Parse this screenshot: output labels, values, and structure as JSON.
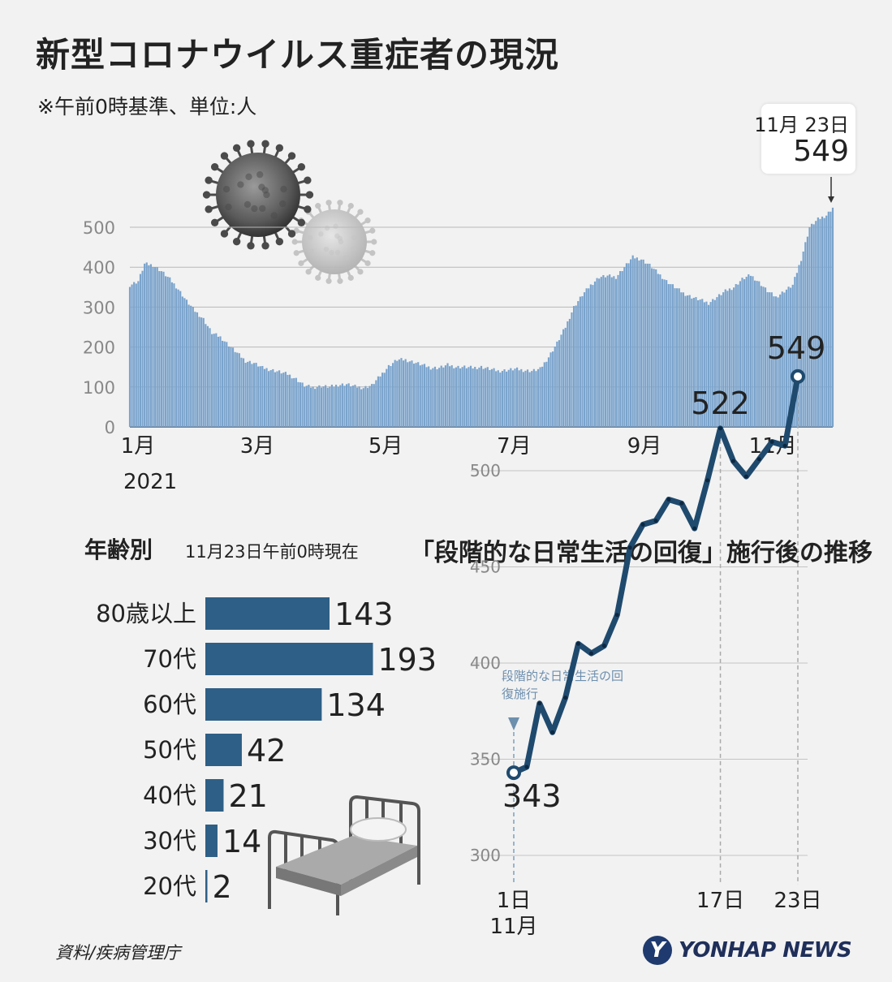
{
  "header": {
    "title": "新型コロナウイルス重症者の現況",
    "subtitle": "※午前0時基準、単位:人"
  },
  "callout": {
    "date": "11月 23日",
    "value": "549"
  },
  "chart_data": [
    {
      "type": "bar",
      "title": "",
      "ylim": [
        0,
        560
      ],
      "yticks": [
        0,
        100,
        200,
        300,
        400,
        500
      ],
      "xtick_labels": [
        "1月",
        "3月",
        "5月",
        "7月",
        "9月",
        "11月"
      ],
      "year_label": "2021",
      "grid": true,
      "color": "#7aa3cc",
      "anchors": [
        [
          "01-01",
          355
        ],
        [
          "01-05",
          365
        ],
        [
          "01-08",
          408
        ],
        [
          "01-12",
          405
        ],
        [
          "01-16",
          390
        ],
        [
          "01-20",
          370
        ],
        [
          "01-24",
          345
        ],
        [
          "01-28",
          315
        ],
        [
          "02-01",
          290
        ],
        [
          "02-05",
          270
        ],
        [
          "02-09",
          235
        ],
        [
          "02-13",
          225
        ],
        [
          "02-17",
          205
        ],
        [
          "02-21",
          185
        ],
        [
          "02-25",
          165
        ],
        [
          "03-01",
          160
        ],
        [
          "03-05",
          148
        ],
        [
          "03-09",
          143
        ],
        [
          "03-13",
          138
        ],
        [
          "03-17",
          132
        ],
        [
          "03-21",
          120
        ],
        [
          "03-25",
          103
        ],
        [
          "03-29",
          99
        ],
        [
          "04-02",
          102
        ],
        [
          "04-06",
          100
        ],
        [
          "04-10",
          105
        ],
        [
          "04-14",
          107
        ],
        [
          "04-18",
          101
        ],
        [
          "04-22",
          98
        ],
        [
          "04-26",
          104
        ],
        [
          "04-30",
          128
        ],
        [
          "05-04",
          152
        ],
        [
          "05-08",
          168
        ],
        [
          "05-12",
          168
        ],
        [
          "05-16",
          162
        ],
        [
          "05-20",
          155
        ],
        [
          "05-24",
          148
        ],
        [
          "05-28",
          148
        ],
        [
          "06-01",
          155
        ],
        [
          "06-05",
          150
        ],
        [
          "06-09",
          150
        ],
        [
          "06-13",
          148
        ],
        [
          "06-17",
          150
        ],
        [
          "06-21",
          145
        ],
        [
          "06-25",
          140
        ],
        [
          "06-29",
          142
        ],
        [
          "07-03",
          145
        ],
        [
          "07-07",
          142
        ],
        [
          "07-11",
          140
        ],
        [
          "07-15",
          145
        ],
        [
          "07-19",
          175
        ],
        [
          "07-23",
          210
        ],
        [
          "07-27",
          250
        ],
        [
          "07-31",
          300
        ],
        [
          "08-04",
          330
        ],
        [
          "08-08",
          355
        ],
        [
          "08-12",
          375
        ],
        [
          "08-16",
          378
        ],
        [
          "08-20",
          375
        ],
        [
          "08-24",
          400
        ],
        [
          "08-28",
          425
        ],
        [
          "09-01",
          420
        ],
        [
          "09-05",
          405
        ],
        [
          "09-09",
          385
        ],
        [
          "09-13",
          365
        ],
        [
          "09-17",
          350
        ],
        [
          "09-21",
          335
        ],
        [
          "09-25",
          325
        ],
        [
          "09-29",
          318
        ],
        [
          "10-03",
          310
        ],
        [
          "10-07",
          325
        ],
        [
          "10-11",
          340
        ],
        [
          "10-15",
          350
        ],
        [
          "10-19",
          370
        ],
        [
          "10-23",
          380
        ],
        [
          "10-27",
          362
        ],
        [
          "10-31",
          340
        ],
        [
          "11-04",
          325
        ],
        [
          "11-08",
          340
        ],
        [
          "11-12",
          355
        ],
        [
          "11-16",
          420
        ],
        [
          "11-20",
          500
        ],
        [
          "11-24",
          520
        ],
        [
          "11-28",
          530
        ],
        [
          "12-01",
          549
        ]
      ]
    },
    {
      "type": "bar",
      "title": "年齢別",
      "categories": [
        "80歳以上",
        "70代",
        "60代",
        "50代",
        "40代",
        "30代",
        "20代"
      ],
      "values": [
        143,
        193,
        134,
        42,
        21,
        14,
        2
      ],
      "color": "#2e5f86"
    },
    {
      "type": "line",
      "title": "「段階的な日常生活の回復」施行後の推移",
      "x": [
        1,
        2,
        3,
        4,
        5,
        6,
        7,
        8,
        9,
        10,
        11,
        12,
        13,
        14,
        15,
        16,
        17,
        18,
        19,
        20,
        21,
        22,
        23
      ],
      "y": [
        343,
        346,
        379,
        364,
        382,
        410,
        405,
        409,
        425,
        460,
        472,
        474,
        485,
        483,
        470,
        495,
        522,
        505,
        497,
        506,
        515,
        513,
        549
      ],
      "ylim": [
        300,
        560
      ],
      "yticks": [
        300,
        350,
        400,
        450,
        500
      ],
      "xtick_labels": [
        "1日",
        "17日",
        "23日"
      ],
      "x_month": "11月",
      "annotation": "段階的な日常生活の回復施行",
      "labels": {
        "start": "343",
        "mid": "522",
        "end": "549"
      },
      "color": "#1f4a6e"
    }
  ],
  "age_section": {
    "title": "年齢別",
    "date": "11月23日午前0時現在"
  },
  "trend_section": {
    "title": "「段階的な日常生活の回復」施行後の推移"
  },
  "footer": {
    "source": "資料/疾病管理庁",
    "logo_text": "YONHAP NEWS",
    "logo_mark": "Y"
  }
}
